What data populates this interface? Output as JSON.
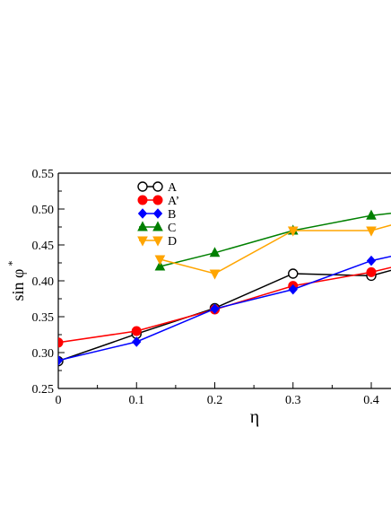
{
  "chart_data": {
    "type": "line",
    "xlabel": "η",
    "ylabel_base": "sin φ",
    "ylabel_sup": "*",
    "xlim": [
      0,
      0.43
    ],
    "ylim": [
      0.25,
      0.55
    ],
    "xticks": [
      0,
      0.1,
      0.2,
      0.3,
      0.4
    ],
    "xtick_labels": [
      "0",
      "0.1",
      "0.2",
      "0.3",
      "0.4"
    ],
    "yticks": [
      0.25,
      0.3,
      0.35,
      0.4,
      0.45,
      0.5,
      0.55
    ],
    "ytick_labels": [
      "0.25",
      "0.30",
      "0.35",
      "0.40",
      "0.45",
      "0.50",
      "0.55"
    ],
    "legend_position": "top-left",
    "grid": false,
    "series": [
      {
        "name": "A",
        "color": "#000000",
        "marker": "circle-open",
        "x": [
          0,
          0.1,
          0.2,
          0.3,
          0.4,
          0.45
        ],
        "y": [
          0.288,
          0.326,
          0.362,
          0.41,
          0.407,
          0.422
        ]
      },
      {
        "name": "A’",
        "color": "#ff0000",
        "marker": "circle-filled",
        "x": [
          0,
          0.1,
          0.2,
          0.3,
          0.4,
          0.45
        ],
        "y": [
          0.314,
          0.33,
          0.36,
          0.393,
          0.412,
          0.425
        ]
      },
      {
        "name": "B",
        "color": "#0000ff",
        "marker": "diamond",
        "x": [
          0,
          0.1,
          0.2,
          0.3,
          0.4,
          0.45
        ],
        "y": [
          0.289,
          0.315,
          0.361,
          0.388,
          0.428,
          0.44
        ]
      },
      {
        "name": "C",
        "color": "#008000",
        "marker": "triangle-up",
        "x": [
          0.13,
          0.2,
          0.3,
          0.4,
          0.45
        ],
        "y": [
          0.42,
          0.439,
          0.47,
          0.491,
          0.497
        ]
      },
      {
        "name": "D",
        "color": "#ffa500",
        "marker": "triangle-down",
        "x": [
          0.13,
          0.2,
          0.3,
          0.4,
          0.45
        ],
        "y": [
          0.43,
          0.41,
          0.47,
          0.47,
          0.485
        ]
      }
    ]
  }
}
